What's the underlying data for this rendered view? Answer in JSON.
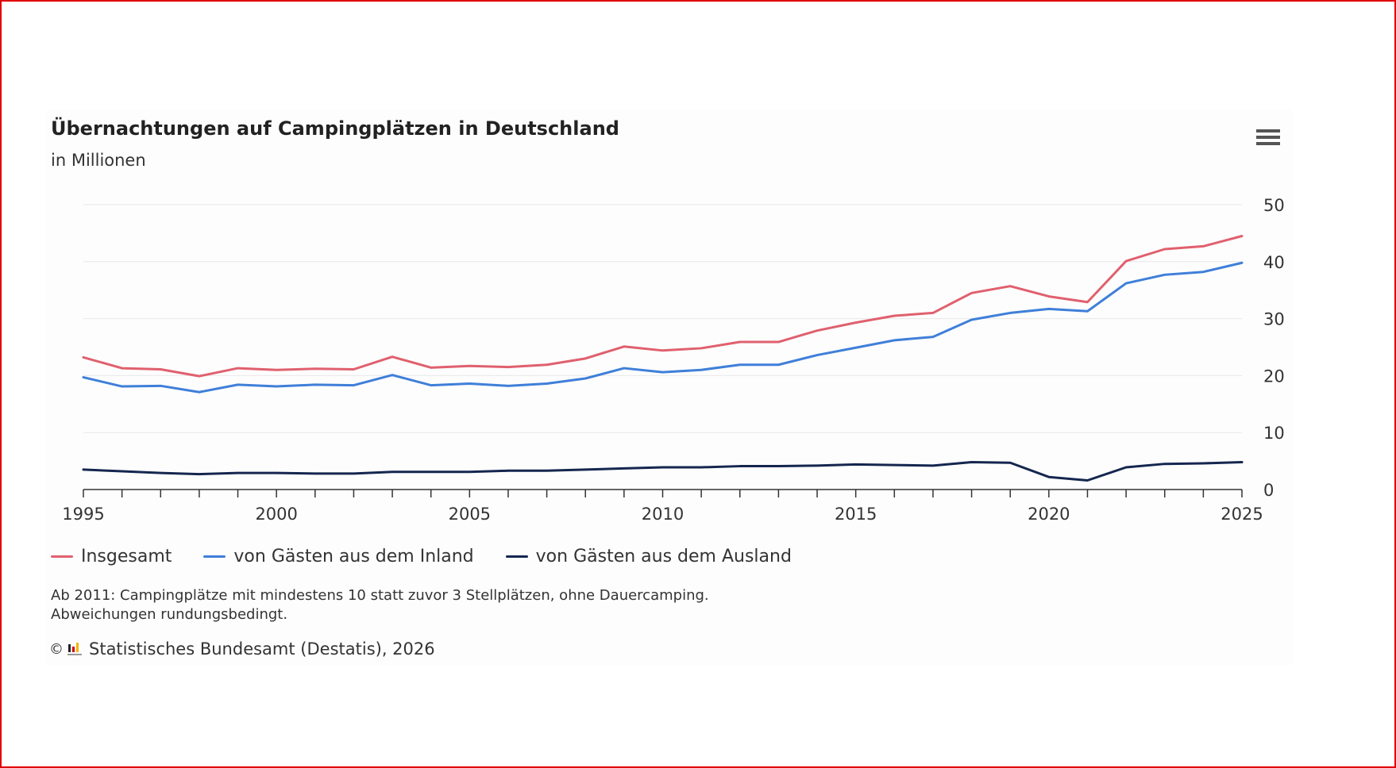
{
  "title": "Übernachtungen auf Campingplätzen in Deutschland",
  "subtitle": "in Millionen",
  "menu_icon": "hamburger-menu-icon",
  "colors": {
    "frame": "#e00000",
    "insgesamt": "#e0606e",
    "inland": "#3f7fd9",
    "ausland": "#15264f",
    "grid": "#e8e8e8"
  },
  "chart_data": {
    "type": "line",
    "title": "Übernachtungen auf Campingplätzen in Deutschland",
    "subtitle": "in Millionen",
    "x": [
      1995,
      1996,
      1997,
      1998,
      1999,
      2000,
      2001,
      2002,
      2003,
      2004,
      2005,
      2006,
      2007,
      2008,
      2009,
      2010,
      2011,
      2012,
      2013,
      2014,
      2015,
      2016,
      2017,
      2018,
      2019,
      2020,
      2021,
      2022,
      2023,
      2024,
      2025
    ],
    "series": [
      {
        "name": "Insgesamt",
        "color": "#e0606e",
        "values": [
          23.2,
          21.3,
          21.1,
          19.9,
          21.3,
          21.0,
          21.2,
          21.1,
          23.3,
          21.4,
          21.7,
          21.5,
          21.9,
          23.0,
          25.1,
          24.4,
          24.8,
          25.9,
          25.9,
          27.9,
          29.3,
          30.5,
          31.0,
          34.5,
          35.7,
          33.9,
          32.9,
          40.1,
          42.2,
          42.7,
          44.5
        ]
      },
      {
        "name": "von Gästen aus dem Inland",
        "color": "#3f7fd9",
        "values": [
          19.7,
          18.1,
          18.2,
          17.1,
          18.4,
          18.1,
          18.4,
          18.3,
          20.1,
          18.3,
          18.6,
          18.2,
          18.6,
          19.5,
          21.3,
          20.6,
          21.0,
          21.9,
          21.9,
          23.6,
          24.9,
          26.2,
          26.8,
          29.8,
          31.0,
          31.7,
          31.3,
          36.2,
          37.7,
          38.2,
          39.8
        ]
      },
      {
        "name": "von Gästen aus dem Ausland",
        "color": "#15264f",
        "values": [
          3.5,
          3.2,
          2.9,
          2.7,
          2.9,
          2.9,
          2.8,
          2.8,
          3.1,
          3.1,
          3.1,
          3.3,
          3.3,
          3.5,
          3.7,
          3.9,
          3.9,
          4.1,
          4.1,
          4.2,
          4.4,
          4.3,
          4.2,
          4.8,
          4.7,
          2.2,
          1.6,
          3.9,
          4.5,
          4.6,
          4.8
        ]
      }
    ],
    "xlim": [
      1995,
      2025
    ],
    "ylim": [
      0,
      50
    ],
    "x_ticks": [
      "1995",
      "2000",
      "2005",
      "2010",
      "2015",
      "2020",
      "2025"
    ],
    "y_ticks": [
      "0",
      "10",
      "20",
      "30",
      "40",
      "50"
    ],
    "y_axis_side": "right",
    "grid": true,
    "legend_position": "bottom-left",
    "xlabel": "",
    "ylabel": ""
  },
  "notes": [
    "Ab 2011: Campingplätze mit mindestens 10 statt zuvor 3 Stellplätzen, ohne Dauercamping.",
    "Abweichungen rundungsbedingt."
  ],
  "credit": {
    "copyright_symbol": "©",
    "logo_icon": "destatis-logo-icon",
    "text": "Statistisches Bundesamt (Destatis), 2026"
  }
}
